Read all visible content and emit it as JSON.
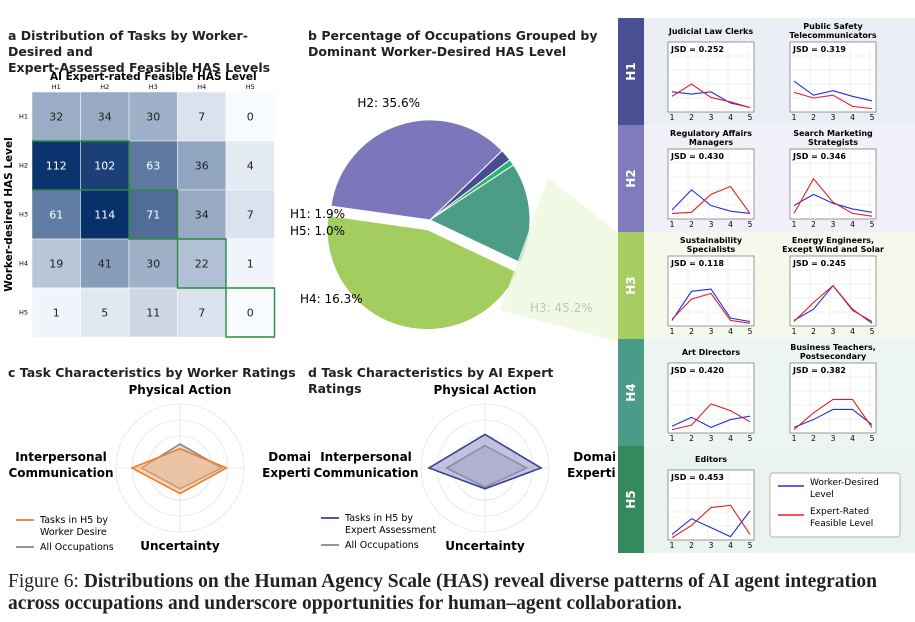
{
  "panel_a": {
    "label": "a",
    "title": "Distribution of Tasks by Worker-Desired and Expert-Assessed Feasible HAS Levels",
    "title_line1": "Distribution of Tasks by Worker-Desired and",
    "title_line2": "Expert-Assessed Feasible HAS Levels"
  },
  "panel_b": {
    "label": "b",
    "title_line1": "Percentage of Occupations Grouped by",
    "title_line2": "Dominant Worker-Desired HAS Level"
  },
  "panel_c": {
    "label": "c",
    "title": "Task Characteristics by Worker Ratings"
  },
  "panel_d": {
    "label": "d",
    "title": "Task Characteristics by AI Expert Ratings"
  },
  "chart_data": [
    {
      "id": "heatmap",
      "type": "heatmap",
      "title": "AI Expert-rated Feasible HAS Level",
      "xlabel": "AI Expert-rated Feasible HAS Level",
      "ylabel": "Worker-desired HAS Level",
      "x_categories": [
        "H1",
        "H2",
        "H3",
        "H4",
        "H5"
      ],
      "y_categories": [
        "H1",
        "H2",
        "H3",
        "H4",
        "H5"
      ],
      "values": [
        [
          32,
          34,
          30,
          7,
          0
        ],
        [
          112,
          102,
          63,
          36,
          4
        ],
        [
          61,
          114,
          71,
          34,
          7
        ],
        [
          19,
          41,
          30,
          22,
          1
        ],
        [
          1,
          5,
          11,
          7,
          0
        ]
      ],
      "colors": {
        "low": "#f7fbff",
        "high": "#08306b",
        "outline": "#2e8b3e"
      }
    },
    {
      "id": "pie",
      "type": "pie",
      "slices": [
        {
          "label": "H2",
          "value": 35.6,
          "text": "H2: 35.6%",
          "color": "#7b77ba"
        },
        {
          "label": "H1",
          "value": 1.9,
          "text": "H1: 1.9%",
          "color": "#484c90"
        },
        {
          "label": "H5",
          "value": 1.0,
          "text": "H5: 1.0%",
          "color": "#2fb26f"
        },
        {
          "label": "H4",
          "value": 16.3,
          "text": "H4: 16.3%",
          "color": "#4c9d88"
        },
        {
          "label": "H3",
          "value": 45.2,
          "text": "H3: 45.2%",
          "color": "#a4cd5f"
        }
      ]
    },
    {
      "id": "radar_c",
      "type": "radar",
      "axes": [
        "Physical Action",
        "Domain Expertise",
        "Uncertainty",
        "Interpersonal Communication"
      ],
      "axis_labels": {
        "top": "Physical Action",
        "right1": "Domain",
        "right2": "Expertise",
        "bottom": "Uncertainty",
        "left1": "Interpersonal",
        "left2": "Communication"
      },
      "rmax": 4,
      "series": [
        {
          "name": "Tasks in H5 by Worker Desire",
          "legend1": "Tasks in H5 by",
          "legend2": "Worker Desire",
          "values": [
            1.2,
            2.9,
            1.6,
            3.0
          ],
          "color": "#ee7d27",
          "fill": "#f6b177"
        },
        {
          "name": "All Occupations",
          "legend1": "All Occupations",
          "values": [
            1.5,
            2.6,
            1.3,
            2.4
          ],
          "color": "#888888",
          "fill": "#bdbdbd"
        }
      ]
    },
    {
      "id": "radar_d",
      "type": "radar",
      "axes": [
        "Physical Action",
        "Domain Expertise",
        "Uncertainty",
        "Interpersonal Communication"
      ],
      "axis_labels": {
        "top": "Physical Action",
        "right1": "Domain",
        "right2": "Expertise",
        "bottom": "Uncertainty",
        "left1": "Interpersonal",
        "left2": "Communication"
      },
      "rmax": 4,
      "series": [
        {
          "name": "Tasks in H5 by Expert Assessment",
          "legend1": "Tasks in H5 by",
          "legend2": "Expert Assessment",
          "values": [
            2.1,
            3.5,
            1.3,
            3.5
          ],
          "color": "#3d3f91",
          "fill": "#8e90c6"
        },
        {
          "name": "All Occupations",
          "legend1": "All Occupations",
          "values": [
            1.4,
            2.6,
            1.2,
            2.4
          ],
          "color": "#888888",
          "fill": "#bdbdbd"
        }
      ]
    },
    {
      "id": "small_multiples",
      "type": "line",
      "x": [
        1,
        2,
        3,
        4,
        5
      ],
      "ylim": [
        0,
        1
      ],
      "legend": [
        {
          "name": "Worker-Desired Level",
          "line1": "Worker-Desired",
          "line2": "Level",
          "color": "#2030e0"
        },
        {
          "name": "Expert-Rated Feasible Level",
          "line1": "Expert-Rated",
          "line2": "Feasible Level",
          "color": "#e02020"
        }
      ],
      "rows": [
        {
          "level": "H1",
          "color": "#4a4e93",
          "bg": "#eceef5",
          "plots": [
            {
              "title1": "Judicial Law Clerks",
              "title2": "",
              "jsd": "JSD = 0.252",
              "worker": [
                0.36,
                0.32,
                0.36,
                0.16,
                0.08
              ],
              "expert": [
                0.28,
                0.5,
                0.26,
                0.18,
                0.08
              ]
            },
            {
              "title1": "Public Safety",
              "title2": "Telecommunicators",
              "jsd": "JSD = 0.319",
              "worker": [
                0.55,
                0.3,
                0.38,
                0.28,
                0.2
              ],
              "expert": [
                0.35,
                0.25,
                0.3,
                0.1,
                0.06
              ]
            }
          ]
        },
        {
          "level": "H2",
          "color": "#7f7bbd",
          "bg": "#f1f0f8",
          "plots": [
            {
              "title1": "Regulatory Affairs",
              "title2": "Managers",
              "jsd": "JSD = 0.430",
              "worker": [
                0.16,
                0.52,
                0.24,
                0.14,
                0.1
              ],
              "expert": [
                0.1,
                0.12,
                0.44,
                0.58,
                0.1
              ]
            },
            {
              "title1": "Search Marketing",
              "title2": "Strategists",
              "jsd": "JSD = 0.346",
              "worker": [
                0.24,
                0.44,
                0.28,
                0.18,
                0.12
              ],
              "expert": [
                0.1,
                0.72,
                0.3,
                0.1,
                0.05
              ]
            }
          ]
        },
        {
          "level": "H3",
          "color": "#a5cd62",
          "bg": "#f5f9ec",
          "plots": [
            {
              "title1": "Sustainability",
              "title2": "Specialists",
              "jsd": "JSD = 0.118",
              "worker": [
                0.1,
                0.62,
                0.66,
                0.14,
                0.08
              ],
              "expert": [
                0.12,
                0.48,
                0.58,
                0.1,
                0.05
              ]
            },
            {
              "title1": "Energy Engineers,",
              "title2": "Except Wind and Solar",
              "jsd": "JSD = 0.245",
              "worker": [
                0.1,
                0.3,
                0.72,
                0.3,
                0.05
              ],
              "expert": [
                0.08,
                0.42,
                0.72,
                0.28,
                0.08
              ]
            }
          ]
        },
        {
          "level": "H4",
          "color": "#4a9c88",
          "bg": "#ecf5f2",
          "plots": [
            {
              "title1": "Art Directors",
              "title2": "",
              "jsd": "JSD = 0.420",
              "worker": [
                0.12,
                0.28,
                0.1,
                0.24,
                0.3
              ],
              "expert": [
                0.06,
                0.14,
                0.52,
                0.4,
                0.2
              ]
            },
            {
              "title1": "Business Teachers,",
              "title2": "Postsecondary",
              "jsd": "JSD = 0.382",
              "worker": [
                0.1,
                0.24,
                0.42,
                0.42,
                0.15
              ],
              "expert": [
                0.06,
                0.36,
                0.6,
                0.6,
                0.1
              ]
            }
          ]
        },
        {
          "level": "H5",
          "color": "#348a5d",
          "bg": "#ebf3ef",
          "plots": [
            {
              "title1": "Editors",
              "title2": "",
              "jsd": "JSD = 0.453",
              "worker": [
                0.1,
                0.38,
                0.22,
                0.06,
                0.52
              ],
              "expert": [
                0.04,
                0.26,
                0.58,
                0.62,
                0.1
              ]
            }
          ]
        }
      ]
    }
  ],
  "caption": {
    "prefix": "Figure 6: ",
    "bold": "Distributions on the Human Agency Scale (HAS) reveal diverse patterns of AI agent integration across occupations and underscore opportunities for human–agent collaboration."
  }
}
